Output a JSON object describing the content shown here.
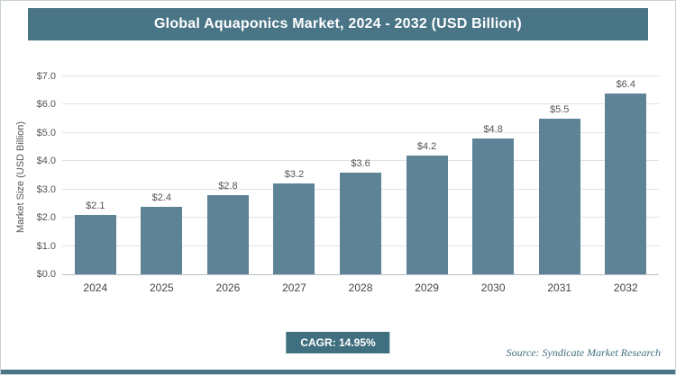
{
  "title": "Global Aquaponics Market, 2024 - 2032 (USD Billion)",
  "chart_data": {
    "type": "bar",
    "title": "Global Aquaponics Market, 2024 - 2032 (USD Billion)",
    "categories": [
      "2024",
      "2025",
      "2026",
      "2027",
      "2028",
      "2029",
      "2030",
      "2031",
      "2032"
    ],
    "values": [
      2.1,
      2.4,
      2.8,
      3.2,
      3.6,
      4.2,
      4.8,
      5.5,
      6.4
    ],
    "value_labels": [
      "$2.1",
      "$2.4",
      "$2.8",
      "$3.2",
      "$3.6",
      "$4.2",
      "$4.8",
      "$5.5",
      "$6.4"
    ],
    "xlabel": "",
    "ylabel": "Market Size (USD Billion)",
    "ylim": [
      0,
      7
    ],
    "ytick_step": 1,
    "ytick_labels": [
      "$0.0",
      "$1.0",
      "$2.0",
      "$3.0",
      "$4.0",
      "$5.0",
      "$6.0",
      "$7.0"
    ],
    "grid": true,
    "legend": "none",
    "bar_color": "#5e8397"
  },
  "footer": {
    "cagr_label": "CAGR: 14.95%",
    "source": "Source: Syndicate Market Research"
  },
  "colors": {
    "header_bg": "#4a7587",
    "badge_bg": "#40707f",
    "bar": "#5e8397",
    "accent_strip": "#4a7587"
  }
}
